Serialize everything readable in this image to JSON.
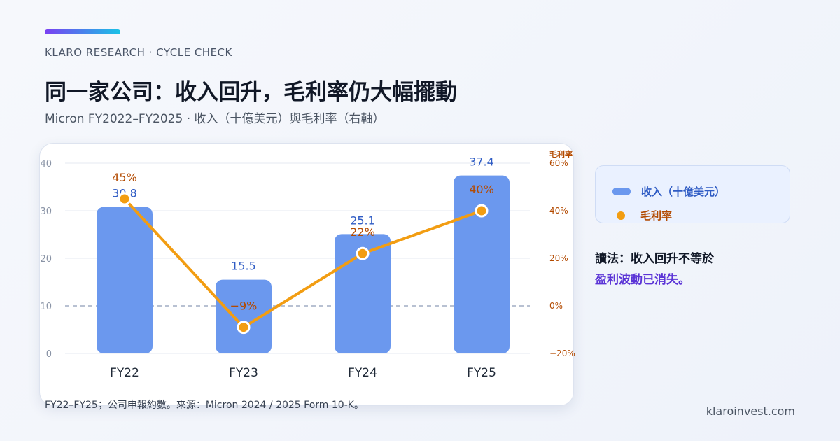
{
  "header": {
    "eyebrow": "KLARO RESEARCH · CYCLE CHECK",
    "title": "同一家公司：收入回升，毛利率仍大幅擺動",
    "subtitle": "Micron FY2022–FY2025 · 收入（十億美元）與毛利率（右軸）"
  },
  "legend": {
    "revenue_label": "收入（十億美元）",
    "margin_label": "毛利率"
  },
  "insight": {
    "line1": "讀法：收入回升不等於",
    "line2": "盈利波動已消失。"
  },
  "footer": {
    "source": "FY22–FY25；公司申報約數。來源：Micron 2024 / 2025 Form 10-K。",
    "domain": "klaroinvest.com"
  },
  "colors": {
    "bar": "#6b98ee",
    "bar_label": "#2e5bc4",
    "line": "#f29d12",
    "margin_label": "#b34a00",
    "grid": "#e4e9f2",
    "zero_line": "#8d9cb8",
    "axis_text": "#8a94a6"
  },
  "chart_data": {
    "type": "bar",
    "categories": [
      "FY22",
      "FY23",
      "FY24",
      "FY25"
    ],
    "series": [
      {
        "name": "收入（十億美元）",
        "type": "bar",
        "axis": "left",
        "values": [
          30.8,
          15.5,
          25.1,
          37.4
        ],
        "labels": [
          "30.8",
          "15.5",
          "25.1",
          "37.4"
        ]
      },
      {
        "name": "毛利率",
        "type": "line",
        "axis": "right",
        "values": [
          45,
          -9,
          22,
          40
        ],
        "labels": [
          "45%",
          "−9%",
          "22%",
          "40%"
        ]
      }
    ],
    "y_left": {
      "ylim": [
        0,
        40
      ],
      "ticks": [
        "0",
        "10",
        "20",
        "30",
        "40"
      ],
      "tick_values": [
        0,
        10,
        20,
        30,
        40
      ]
    },
    "y_right": {
      "label": "毛利率",
      "ylim": [
        -20,
        60
      ],
      "ticks": [
        "−20%",
        "0%",
        "20%",
        "40%",
        "60%"
      ],
      "tick_values": [
        -20,
        0,
        20,
        40,
        60
      ]
    },
    "zero_line": "dashed at 0% margin",
    "grid": true
  }
}
